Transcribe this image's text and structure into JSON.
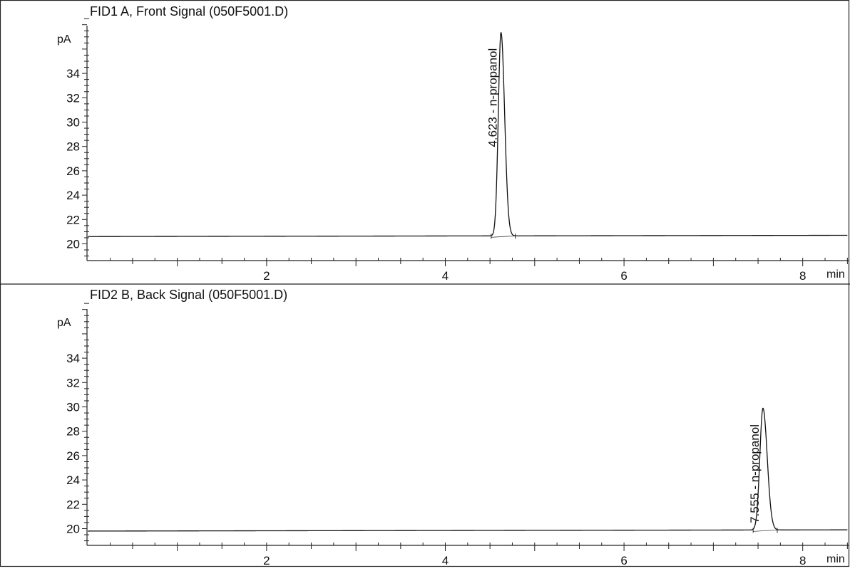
{
  "chart_data": [
    {
      "type": "line",
      "title": "FID1 A, Front Signal (050F5001.D)",
      "ylabel": "pA",
      "xlabel": "min",
      "xlim": [
        0,
        8.5
      ],
      "ylim": [
        19,
        38.5
      ],
      "xticks": [
        2,
        4,
        6,
        8
      ],
      "yticks": [
        20,
        22,
        24,
        26,
        28,
        30,
        32,
        34
      ],
      "grid": false,
      "baseline": 20.6,
      "peaks": [
        {
          "rt": 4.623,
          "apex": 37.3,
          "width": 0.03,
          "label": "4.623 -  n-propanol"
        }
      ]
    },
    {
      "type": "line",
      "title": "FID2 B, Back Signal (050F5001.D)",
      "ylabel": "pA",
      "xlabel": "min",
      "xlim": [
        0,
        8.5
      ],
      "ylim": [
        19,
        38.5
      ],
      "xticks": [
        2,
        4,
        6,
        8
      ],
      "yticks": [
        20,
        22,
        24,
        26,
        28,
        30,
        32,
        34
      ],
      "grid": false,
      "baseline": 19.8,
      "peaks": [
        {
          "rt": 7.555,
          "apex": 29.8,
          "width": 0.035,
          "label": "7.555 -  n-propanol"
        }
      ]
    }
  ]
}
